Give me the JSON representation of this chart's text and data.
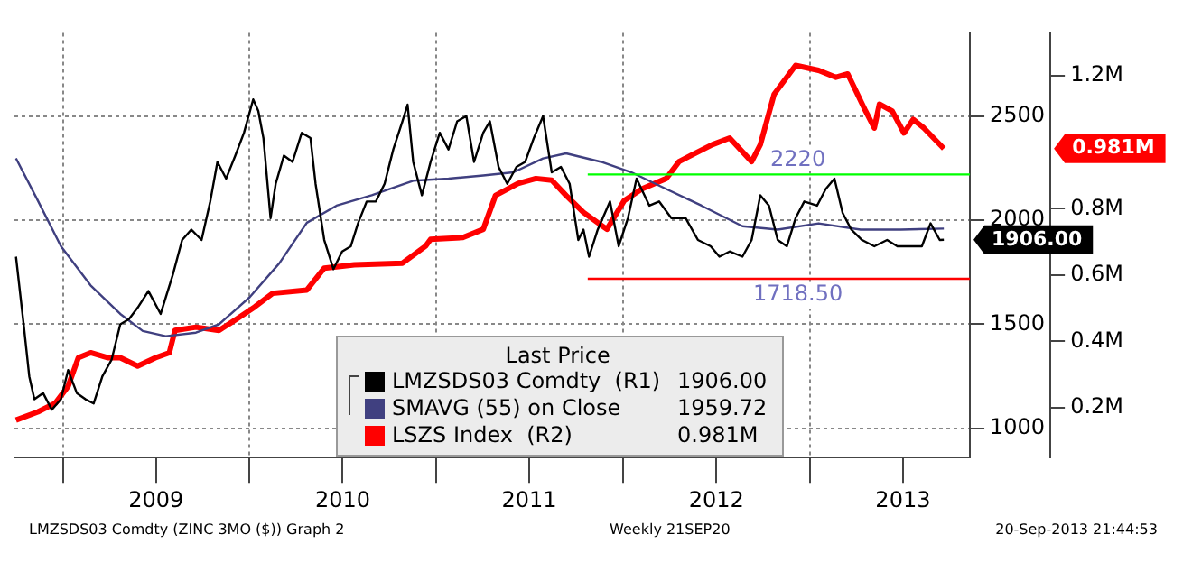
{
  "chart_data": {
    "type": "line",
    "legend_title": "Last Price",
    "legend": "bottom",
    "grid": true,
    "marker": "none",
    "line_style": "solid",
    "xlim": [
      "2008-09-28",
      "2013-11-10"
    ],
    "xticks": [
      {
        "value": "2009-01-01",
        "label": null
      },
      {
        "value": "2009-07-02",
        "label": "2009"
      },
      {
        "value": "2010-01-01",
        "label": null
      },
      {
        "value": "2010-07-02",
        "label": "2010"
      },
      {
        "value": "2011-01-01",
        "label": null
      },
      {
        "value": "2011-07-02",
        "label": "2011"
      },
      {
        "value": "2012-01-01",
        "label": null
      },
      {
        "value": "2012-07-02",
        "label": "2012"
      },
      {
        "value": "2013-01-01",
        "label": null
      },
      {
        "value": "2013-07-02",
        "label": "2013"
      }
    ],
    "ylim": [
      860,
      2900
    ],
    "yticks": [
      1000,
      1500,
      2000,
      2500
    ],
    "y2lim": [
      0.05,
      1.33
    ],
    "y2ticks": [
      {
        "value": 0.2,
        "label": "0.2M"
      },
      {
        "value": 0.4,
        "label": "0.4M"
      },
      {
        "value": 0.6,
        "label": "0.6M"
      },
      {
        "value": 0.8,
        "label": "0.8M"
      },
      {
        "value": 1.2,
        "label": "1.2M"
      }
    ],
    "ref_lines": [
      {
        "axis": "y",
        "value": 2220,
        "label": "2220",
        "color": "#00ff00"
      },
      {
        "axis": "y",
        "value": 1718.5,
        "label": "1718.50",
        "color": "#ff0000"
      }
    ],
    "annotations": [
      "1906.00",
      "1959.72",
      "0.981M",
      "1906.00",
      "0.981M",
      "LMZSDS03 Comdty (ZINC 3MO ($)) Graph 2",
      "Weekly 21SEP20",
      "20-Sep-2013 21:44:53"
    ],
    "series": [
      {
        "name": "LMZSDS03 Comdty  (R1)",
        "color": "#000000",
        "x": [
          "2008-10-01",
          "2008-10-16",
          "2008-10-27",
          "2008-11-06",
          "2008-11-23",
          "2008-12-10",
          "2008-12-28",
          "2009-01-11",
          "2009-01-28",
          "2009-02-14",
          "2009-03-02",
          "2009-03-19",
          "2009-04-06",
          "2009-04-23",
          "2009-05-10",
          "2009-05-27",
          "2009-06-17",
          "2009-07-11",
          "2009-08-04",
          "2009-08-22",
          "2009-09-09",
          "2009-09-29",
          "2009-10-16",
          "2009-10-30",
          "2009-11-16",
          "2009-12-04",
          "2009-12-21",
          "2010-01-08",
          "2010-01-18",
          "2010-01-28",
          "2010-02-11",
          "2010-02-21",
          "2010-03-09",
          "2010-03-26",
          "2010-04-13",
          "2010-04-30",
          "2010-05-10",
          "2010-05-27",
          "2010-06-14",
          "2010-07-01",
          "2010-07-18",
          "2010-08-01",
          "2010-08-18",
          "2010-09-05",
          "2010-09-22",
          "2010-10-09",
          "2010-10-27",
          "2010-11-06",
          "2010-11-17",
          "2010-12-04",
          "2010-12-21",
          "2011-01-08",
          "2011-01-25",
          "2011-02-11",
          "2011-03-01",
          "2011-03-16",
          "2011-04-03",
          "2011-04-16",
          "2011-05-03",
          "2011-05-20",
          "2011-06-07",
          "2011-06-24",
          "2011-07-11",
          "2011-07-29",
          "2011-08-15",
          "2011-09-02",
          "2011-09-19",
          "2011-10-06",
          "2011-10-16",
          "2011-10-27",
          "2011-11-13",
          "2011-12-07",
          "2011-12-24",
          "2012-01-11",
          "2012-01-28",
          "2012-02-22",
          "2012-03-12",
          "2012-04-05",
          "2012-05-03",
          "2012-05-27",
          "2012-06-21",
          "2012-07-08",
          "2012-07-28",
          "2012-08-22",
          "2012-09-09",
          "2012-09-26",
          "2012-10-13",
          "2012-10-30",
          "2012-11-17",
          "2012-12-04",
          "2012-12-21",
          "2013-01-15",
          "2013-02-01",
          "2013-02-18",
          "2013-03-06",
          "2013-03-23",
          "2013-04-13",
          "2013-05-07",
          "2013-06-01",
          "2013-06-21",
          "2013-07-15",
          "2013-08-08",
          "2013-08-25",
          "2013-09-12",
          "2013-09-20"
        ],
        "values": [
          1825,
          1500,
          1250,
          1140,
          1170,
          1090,
          1140,
          1280,
          1170,
          1140,
          1120,
          1250,
          1330,
          1500,
          1525,
          1580,
          1660,
          1550,
          1740,
          1905,
          1955,
          1905,
          2090,
          2280,
          2200,
          2310,
          2420,
          2580,
          2525,
          2395,
          2010,
          2175,
          2310,
          2280,
          2420,
          2395,
          2175,
          1905,
          1765,
          1850,
          1875,
          1985,
          2090,
          2090,
          2175,
          2340,
          2475,
          2555,
          2280,
          2120,
          2280,
          2420,
          2340,
          2475,
          2500,
          2280,
          2420,
          2475,
          2256,
          2175,
          2256,
          2280,
          2395,
          2500,
          2230,
          2256,
          2175,
          1905,
          1955,
          1825,
          1955,
          2090,
          1875,
          2010,
          2200,
          2070,
          2090,
          2010,
          2010,
          1905,
          1875,
          1825,
          1850,
          1825,
          1905,
          2120,
          2070,
          1905,
          1875,
          2010,
          2090,
          2070,
          2150,
          2200,
          2035,
          1955,
          1905,
          1875,
          1905,
          1875,
          1875,
          1875,
          1985,
          1905,
          1906
        ]
      },
      {
        "name": "SMAVG (55) on Close",
        "color": "#404080",
        "x": [
          "2008-10-01",
          "2008-11-13",
          "2008-12-28",
          "2009-02-24",
          "2009-04-23",
          "2009-06-06",
          "2009-07-21",
          "2009-09-18",
          "2009-11-02",
          "2010-01-01",
          "2010-02-28",
          "2010-04-23",
          "2010-06-20",
          "2010-08-28",
          "2010-11-17",
          "2011-01-25",
          "2011-04-03",
          "2011-06-01",
          "2011-07-29",
          "2011-09-12",
          "2011-11-20",
          "2012-01-18",
          "2012-03-26",
          "2012-06-03",
          "2012-08-22",
          "2012-10-30",
          "2013-01-18",
          "2013-04-10",
          "2013-06-28",
          "2013-09-20"
        ],
        "values": [
          2297,
          2093,
          1875,
          1687,
          1550,
          1468,
          1443,
          1460,
          1500,
          1630,
          1793,
          1988,
          2070,
          2120,
          2190,
          2200,
          2215,
          2230,
          2297,
          2321,
          2280,
          2230,
          2150,
          2070,
          1971,
          1955,
          1985,
          1955,
          1955,
          1959.72
        ]
      },
      {
        "name": "LSZS Index  (R2)",
        "color": "#ff0000",
        "axis": "y2",
        "x": [
          "2008-10-01",
          "2008-11-13",
          "2008-12-17",
          "2009-01-11",
          "2009-01-31",
          "2009-02-24",
          "2009-03-29",
          "2009-04-23",
          "2009-05-27",
          "2009-07-01",
          "2009-07-28",
          "2009-08-08",
          "2009-09-18",
          "2009-11-02",
          "2009-12-07",
          "2010-01-11",
          "2010-02-15",
          "2010-04-23",
          "2010-05-27",
          "2010-07-25",
          "2010-10-27",
          "2010-12-11",
          "2010-12-21",
          "2011-02-22",
          "2011-04-03",
          "2011-04-27",
          "2011-06-10",
          "2011-07-15",
          "2011-08-15",
          "2011-09-12",
          "2011-10-16",
          "2011-12-01",
          "2012-01-04",
          "2012-02-08",
          "2012-03-26",
          "2012-04-20",
          "2012-06-24",
          "2012-07-28",
          "2012-09-09",
          "2012-09-26",
          "2012-10-23",
          "2012-12-04",
          "2013-01-18",
          "2013-02-21",
          "2013-03-16",
          "2013-04-20",
          "2013-05-07",
          "2013-05-17",
          "2013-06-11",
          "2013-07-04",
          "2013-07-22",
          "2013-08-12",
          "2013-09-20"
        ],
        "values": [
          0.163,
          0.188,
          0.214,
          0.265,
          0.351,
          0.366,
          0.351,
          0.351,
          0.326,
          0.351,
          0.366,
          0.433,
          0.443,
          0.433,
          0.468,
          0.504,
          0.545,
          0.555,
          0.621,
          0.631,
          0.636,
          0.687,
          0.708,
          0.713,
          0.738,
          0.84,
          0.876,
          0.891,
          0.886,
          0.84,
          0.789,
          0.738,
          0.825,
          0.86,
          0.891,
          0.942,
          0.993,
          1.013,
          0.942,
          0.993,
          1.145,
          1.232,
          1.217,
          1.196,
          1.206,
          1.094,
          1.043,
          1.115,
          1.094,
          1.028,
          1.069,
          1.043,
          0.981
        ]
      }
    ]
  }
}
